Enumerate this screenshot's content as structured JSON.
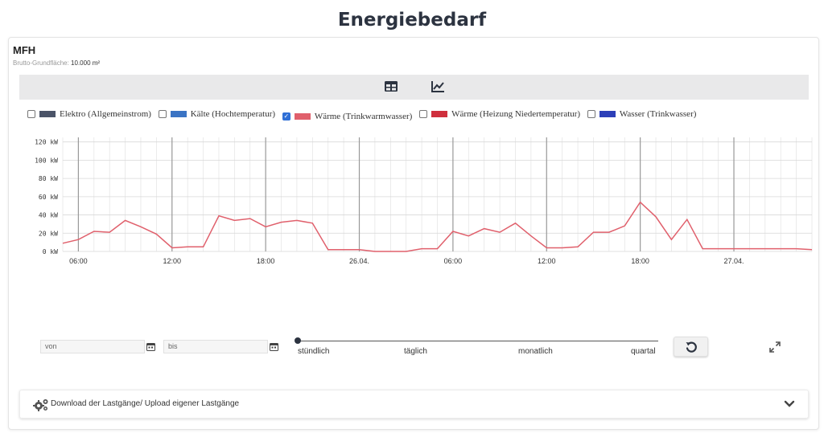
{
  "page": {
    "title": "Energiebedarf"
  },
  "card": {
    "name": "MFH",
    "area_label": "Brutto-Grundfläche:",
    "area_value": "10.000 m²"
  },
  "toolbar": {
    "table_icon": "table-icon",
    "chart_icon": "line-chart-icon"
  },
  "legend": [
    {
      "label": "Elektro (Allgemeinstrom)",
      "color": "#4b5468",
      "checked": false
    },
    {
      "label": "Kälte (Hochtemperatur)",
      "color": "#3b74c4",
      "checked": false
    },
    {
      "label": "Wärme (Trinkwarmwasser)",
      "color": "#e0606c",
      "checked": true
    },
    {
      "label": "Wärme (Heizung Niedertemperatur)",
      "color": "#cf2f3d",
      "checked": false
    },
    {
      "label": "Wasser (Trinkwasser)",
      "color": "#2c3fb8",
      "checked": false
    }
  ],
  "controls": {
    "from_placeholder": "von",
    "to_placeholder": "bis",
    "slider_labels": [
      "stündlich",
      "täglich",
      "monatlich",
      "quartal"
    ],
    "slider_value": "stündlich"
  },
  "accordion": {
    "label": "Download der Lastgänge/ Upload eigener Lastgänge"
  },
  "chart_data": {
    "type": "line",
    "ylim": [
      0,
      125
    ],
    "yticks": [
      0,
      20,
      40,
      60,
      80,
      100,
      120
    ],
    "ytick_labels": [
      "0 kW",
      "20 kW",
      "40 kW",
      "60 kW",
      "80 kW",
      "100 kW",
      "120 kW"
    ],
    "xlim": [
      5,
      53
    ],
    "xticks": [
      {
        "h": 6,
        "label": "06:00"
      },
      {
        "h": 12,
        "label": "12:00"
      },
      {
        "h": 18,
        "label": "18:00"
      },
      {
        "h": 24,
        "label": "26.04."
      },
      {
        "h": 30,
        "label": "06:00"
      },
      {
        "h": 36,
        "label": "12:00"
      },
      {
        "h": 42,
        "label": "18:00"
      },
      {
        "h": 48,
        "label": "27.04."
      }
    ],
    "grid": true,
    "series": [
      {
        "color": "#e0606c",
        "points": [
          [
            5,
            9
          ],
          [
            6,
            13
          ],
          [
            7,
            22
          ],
          [
            8,
            21
          ],
          [
            9,
            34
          ],
          [
            10,
            27
          ],
          [
            11,
            19
          ],
          [
            12,
            4
          ],
          [
            13,
            5
          ],
          [
            14,
            5
          ],
          [
            15,
            39
          ],
          [
            16,
            34
          ],
          [
            17,
            36
          ],
          [
            18,
            27
          ],
          [
            19,
            32
          ],
          [
            20,
            34
          ],
          [
            21,
            31
          ],
          [
            22,
            2
          ],
          [
            23,
            2
          ],
          [
            24,
            2
          ],
          [
            25,
            0
          ],
          [
            26,
            0
          ],
          [
            27,
            0
          ],
          [
            28,
            3
          ],
          [
            29,
            3
          ],
          [
            30,
            22
          ],
          [
            31,
            17
          ],
          [
            32,
            25
          ],
          [
            33,
            21
          ],
          [
            34,
            31
          ],
          [
            35,
            17
          ],
          [
            36,
            4
          ],
          [
            37,
            4
          ],
          [
            38,
            5
          ],
          [
            39,
            21
          ],
          [
            40,
            21
          ],
          [
            41,
            28
          ],
          [
            42,
            54
          ],
          [
            43,
            38
          ],
          [
            44,
            13
          ],
          [
            45,
            35
          ],
          [
            46,
            3
          ],
          [
            47,
            3
          ],
          [
            48,
            3
          ],
          [
            49,
            3
          ],
          [
            50,
            3
          ],
          [
            51,
            3
          ],
          [
            52,
            3
          ],
          [
            53,
            2
          ]
        ]
      }
    ]
  }
}
